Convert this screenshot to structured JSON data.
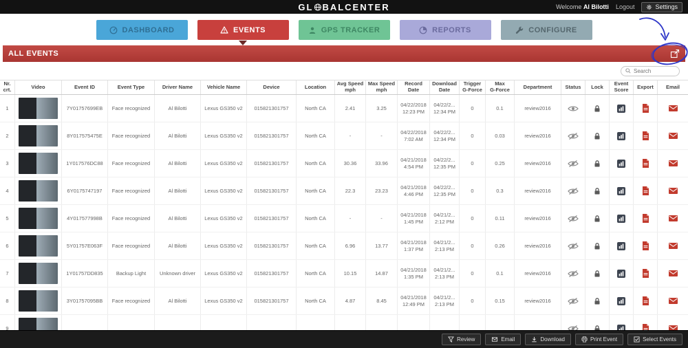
{
  "topbar": {
    "brand_prefix": "GL",
    "brand_suffix": "BALCENTER",
    "welcome": "Welcome",
    "user": "Al Bilotti",
    "logout": "Logout",
    "settings": "Settings"
  },
  "tabs": [
    {
      "label": "DASHBOARD",
      "icon": "gauge-icon",
      "color": "#4aa6d8",
      "text_color": "#2f6f94",
      "active": false
    },
    {
      "label": "EVENTS",
      "icon": "warning-icon",
      "color": "#c8403d",
      "text_color": "#ffffff",
      "active": true
    },
    {
      "label": "GPS TRACKER",
      "icon": "person-pin-icon",
      "color": "#6fc495",
      "text_color": "#3e8763",
      "active": false
    },
    {
      "label": "REPORTS",
      "icon": "reports-icon",
      "color": "#a9a9d9",
      "text_color": "#6b6b9e",
      "active": false
    },
    {
      "label": "CONFIGURE",
      "icon": "wrench-icon",
      "color": "#93aab2",
      "text_color": "#55676e",
      "active": false
    }
  ],
  "section": {
    "title": "ALL EVENTS",
    "accent": "#b23a37",
    "export_icon": "export-events-icon"
  },
  "search": {
    "placeholder": "Search"
  },
  "table": {
    "columns": [
      "Nr.\ncrt.",
      "Video",
      "Event ID",
      "Event Type",
      "Driver Name",
      "Vehicle Name",
      "Device",
      "Location",
      "Avg Speed\nmph",
      "Max Speed\nmph",
      "Record Date",
      "Download\nDate",
      "Trigger\nG-Force",
      "Max\nG-Force",
      "Department",
      "Status",
      "Lock",
      "Event\nScore",
      "Export",
      "Email"
    ],
    "row_icons": {
      "status_visible": "eye-icon",
      "status_hidden": "eye-off-icon",
      "lock": "lock-icon",
      "score": "event-score-icon",
      "export": "pdf-icon",
      "email": "envelope-icon"
    },
    "rows": [
      {
        "nr": "1",
        "event_id": "7Y01757699EB",
        "event_type": "Face recognized",
        "driver": "Al Bilotti",
        "vehicle": "Lexus GS350 v2",
        "device": "015821301757",
        "location": "North CA",
        "avg_speed": "2.41",
        "max_speed": "3.25",
        "record_date": "04/22/2018\n12:23 PM",
        "download_date": "04/22/2...\n12:34 PM",
        "trigger_g": "0",
        "max_g": "0.1",
        "department": "review2016",
        "status": "visible"
      },
      {
        "nr": "2",
        "event_id": "8Y017575475E",
        "event_type": "Face recognized",
        "driver": "Al Bilotti",
        "vehicle": "Lexus GS350 v2",
        "device": "015821301757",
        "location": "North CA",
        "avg_speed": "-",
        "max_speed": "-",
        "record_date": "04/22/2018\n7:02 AM",
        "download_date": "04/22/2...\n12:34 PM",
        "trigger_g": "0",
        "max_g": "0.03",
        "department": "review2016",
        "status": "hidden"
      },
      {
        "nr": "3",
        "event_id": "1Y017576DC88",
        "event_type": "Face recognized",
        "driver": "Al Bilotti",
        "vehicle": "Lexus GS350 v2",
        "device": "015821301757",
        "location": "North CA",
        "avg_speed": "30.36",
        "max_speed": "33.96",
        "record_date": "04/21/2018\n4:54 PM",
        "download_date": "04/22/2...\n12:35 PM",
        "trigger_g": "0",
        "max_g": "0.25",
        "department": "review2016",
        "status": "hidden"
      },
      {
        "nr": "4",
        "event_id": "6Y0175747197",
        "event_type": "Face recognized",
        "driver": "Al Bilotti",
        "vehicle": "Lexus GS350 v2",
        "device": "015821301757",
        "location": "North CA",
        "avg_speed": "22.3",
        "max_speed": "23.23",
        "record_date": "04/21/2018\n4:46 PM",
        "download_date": "04/22/2...\n12:35 PM",
        "trigger_g": "0",
        "max_g": "0.3",
        "department": "review2016",
        "status": "hidden"
      },
      {
        "nr": "5",
        "event_id": "4Y017577998B",
        "event_type": "Face recognized",
        "driver": "Al Bilotti",
        "vehicle": "Lexus GS350 v2",
        "device": "015821301757",
        "location": "North CA",
        "avg_speed": "-",
        "max_speed": "-",
        "record_date": "04/21/2018\n1:45 PM",
        "download_date": "04/21/2...\n2:12 PM",
        "trigger_g": "0",
        "max_g": "0.11",
        "department": "review2016",
        "status": "hidden"
      },
      {
        "nr": "6",
        "event_id": "5Y01757E063F",
        "event_type": "Face recognized",
        "driver": "Al Bilotti",
        "vehicle": "Lexus GS350 v2",
        "device": "015821301757",
        "location": "North CA",
        "avg_speed": "6.96",
        "max_speed": "13.77",
        "record_date": "04/21/2018\n1:37 PM",
        "download_date": "04/21/2...\n2:13 PM",
        "trigger_g": "0",
        "max_g": "0.26",
        "department": "review2016",
        "status": "hidden"
      },
      {
        "nr": "7",
        "event_id": "1Y01757DD835",
        "event_type": "Backup Light",
        "driver": "Unknown driver",
        "vehicle": "Lexus GS350 v2",
        "device": "015821301757",
        "location": "North CA",
        "avg_speed": "10.15",
        "max_speed": "14.87",
        "record_date": "04/21/2018\n1:35 PM",
        "download_date": "04/21/2...\n2:13 PM",
        "trigger_g": "0",
        "max_g": "0.1",
        "department": "review2016",
        "status": "hidden"
      },
      {
        "nr": "8",
        "event_id": "3Y01757095BB",
        "event_type": "Face recognized",
        "driver": "Al Bilotti",
        "vehicle": "Lexus GS350 v2",
        "device": "015821301757",
        "location": "North CA",
        "avg_speed": "4.87",
        "max_speed": "8.45",
        "record_date": "04/21/2018\n12:49 PM",
        "download_date": "04/21/2...\n2:13 PM",
        "trigger_g": "0",
        "max_g": "0.15",
        "department": "review2016",
        "status": "hidden"
      },
      {
        "nr": "9",
        "event_id": "",
        "event_type": "",
        "driver": "",
        "vehicle": "",
        "device": "",
        "location": "",
        "avg_speed": "",
        "max_speed": "",
        "record_date": "",
        "download_date": "",
        "trigger_g": "",
        "max_g": "",
        "department": "",
        "status": "hidden"
      }
    ]
  },
  "footer": {
    "buttons": [
      {
        "label": "Review",
        "icon": "filter-icon"
      },
      {
        "label": "Email",
        "icon": "envelope-icon"
      },
      {
        "label": "Download",
        "icon": "download-icon"
      },
      {
        "label": "Print Event",
        "icon": "printer-icon"
      },
      {
        "label": "Select Events",
        "icon": "select-icon"
      }
    ]
  },
  "annotation": {
    "color": "#2e36c8",
    "shape": "hand-drawn arrow pointing into circled export icon"
  }
}
